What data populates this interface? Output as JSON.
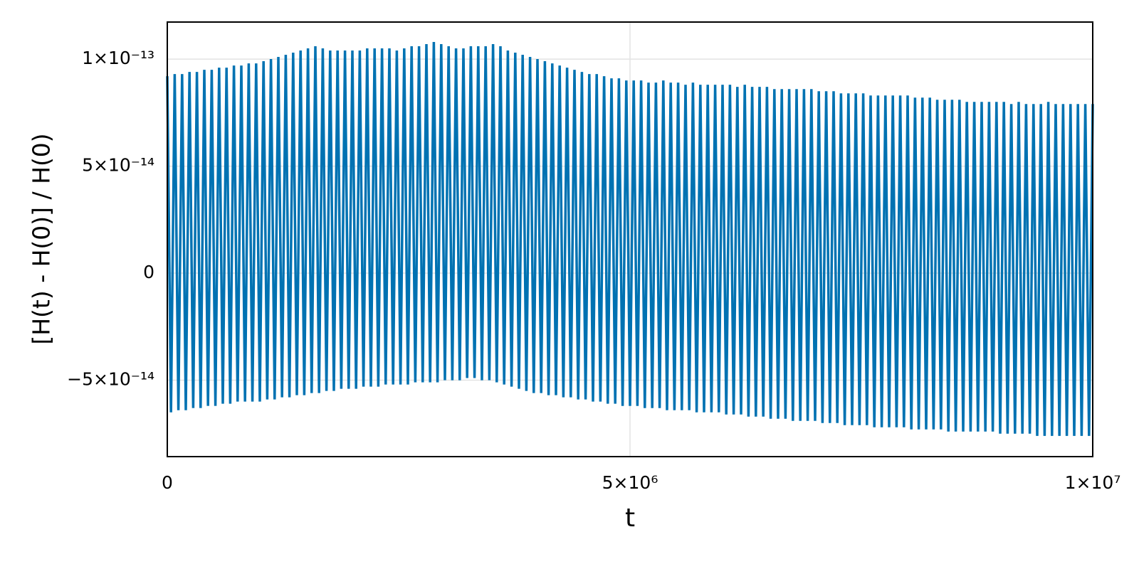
{
  "chart_data": {
    "type": "line",
    "xlabel": "t",
    "ylabel": "[H(t) - H(0)] / H(0)",
    "color": "#0072b2",
    "grid": true,
    "xlim": [
      0,
      10000000
    ],
    "ylim": [
      -8.57e-14,
      1.173e-13
    ],
    "xticks": [
      0,
      {
        "value": 5000000,
        "label": "5×10⁶"
      },
      {
        "value": 10000000,
        "label": "1×10⁷"
      }
    ],
    "yticks": [
      {
        "value": -5e-14,
        "label": "−5×10⁻¹⁴"
      },
      0,
      {
        "value": 5e-14,
        "label": "5×10⁻¹⁴"
      },
      {
        "value": 1e-13,
        "label": "1×10⁻¹³"
      }
    ],
    "x": [
      0,
      40000,
      80000,
      120000,
      160000,
      200000,
      240000,
      280000,
      320000,
      360000,
      400000,
      440000,
      480000,
      520000,
      560000,
      600000,
      640000,
      680000,
      720000,
      760000,
      800000,
      840000,
      880000,
      920000,
      960000,
      1000000,
      1040000,
      1080000,
      1120000,
      1160000,
      1200000,
      1240000,
      1280000,
      1320000,
      1360000,
      1400000,
      1440000,
      1480000,
      1520000,
      1560000,
      1600000,
      1640000,
      1680000,
      1720000,
      1760000,
      1800000,
      1840000,
      1880000,
      1920000,
      1960000,
      2000000,
      2040000,
      2080000,
      2120000,
      2160000,
      2200000,
      2240000,
      2280000,
      2320000,
      2360000,
      2400000,
      2440000,
      2480000,
      2520000,
      2560000,
      2600000,
      2640000,
      2680000,
      2720000,
      2760000,
      2800000,
      2840000,
      2880000,
      2920000,
      2960000,
      3000000,
      3040000,
      3080000,
      3120000,
      3160000,
      3200000,
      3240000,
      3280000,
      3320000,
      3360000,
      3400000,
      3440000,
      3480000,
      3520000,
      3560000,
      3600000,
      3640000,
      3680000,
      3720000,
      3760000,
      3800000,
      3840000,
      3880000,
      3920000,
      3960000,
      4000000,
      4040000,
      4080000,
      4120000,
      4160000,
      4200000,
      4240000,
      4280000,
      4320000,
      4360000,
      4400000,
      4440000,
      4480000,
      4520000,
      4560000,
      4600000,
      4640000,
      4680000,
      4720000,
      4760000,
      4800000,
      4840000,
      4880000,
      4920000,
      4960000,
      5000000,
      5040000,
      5080000,
      5120000,
      5160000,
      5200000,
      5240000,
      5280000,
      5320000,
      5360000,
      5400000,
      5440000,
      5480000,
      5520000,
      5560000,
      5600000,
      5640000,
      5680000,
      5720000,
      5760000,
      5800000,
      5840000,
      5880000,
      5920000,
      5960000,
      6000000,
      6040000,
      6080000,
      6120000,
      6160000,
      6200000,
      6240000,
      6280000,
      6320000,
      6360000,
      6400000,
      6440000,
      6480000,
      6520000,
      6560000,
      6600000,
      6640000,
      6680000,
      6720000,
      6760000,
      6800000,
      6840000,
      6880000,
      6920000,
      6960000,
      7000000,
      7040000,
      7080000,
      7120000,
      7160000,
      7200000,
      7240000,
      7280000,
      7320000,
      7360000,
      7400000,
      7440000,
      7480000,
      7520000,
      7560000,
      7600000,
      7640000,
      7680000,
      7720000,
      7760000,
      7800000,
      7840000,
      7880000,
      7920000,
      7960000,
      8000000,
      8040000,
      8080000,
      8120000,
      8160000,
      8200000,
      8240000,
      8280000,
      8320000,
      8360000,
      8400000,
      8440000,
      8480000,
      8520000,
      8560000,
      8600000,
      8640000,
      8680000,
      8720000,
      8760000,
      8800000,
      8840000,
      8880000,
      8920000,
      8960000,
      9000000,
      9040000,
      9080000,
      9120000,
      9160000,
      9200000,
      9240000,
      9280000,
      9320000,
      9360000,
      9400000,
      9440000,
      9480000,
      9520000,
      9560000,
      9600000,
      9640000,
      9680000,
      9720000,
      9760000,
      9800000,
      9840000,
      9880000,
      9920000,
      9960000,
      10000000
    ],
    "values": [
      9.2e-14,
      -6.5e-14,
      9.3e-14,
      -6.4e-14,
      9.3e-14,
      -6.4e-14,
      9.4e-14,
      -6.3e-14,
      9.4e-14,
      -6.3e-14,
      9.5e-14,
      -6.2e-14,
      9.5e-14,
      -6.2e-14,
      9.6e-14,
      -6.1e-14,
      9.6e-14,
      -6.1e-14,
      9.7e-14,
      -6e-14,
      9.7e-14,
      -6e-14,
      9.8e-14,
      -6e-14,
      9.8e-14,
      -6e-14,
      9.9e-14,
      -5.9e-14,
      1e-13,
      -5.9e-14,
      1.01e-13,
      -5.8e-14,
      1.02e-13,
      -5.8e-14,
      1.03e-13,
      -5.7e-14,
      1.04e-13,
      -5.7e-14,
      1.05e-13,
      -5.6e-14,
      1.06e-13,
      -5.6e-14,
      1.05e-13,
      -5.5e-14,
      1.04e-13,
      -5.5e-14,
      1.04e-13,
      -5.4e-14,
      1.04e-13,
      -5.4e-14,
      1.04e-13,
      -5.4e-14,
      1.04e-13,
      -5.3e-14,
      1.05e-13,
      -5.3e-14,
      1.05e-13,
      -5.3e-14,
      1.05e-13,
      -5.2e-14,
      1.05e-13,
      -5.2e-14,
      1.04e-13,
      -5.2e-14,
      1.05e-13,
      -5.2e-14,
      1.06e-13,
      -5.1e-14,
      1.06e-13,
      -5.1e-14,
      1.07e-13,
      -5.1e-14,
      1.08e-13,
      -5.1e-14,
      1.07e-13,
      -5e-14,
      1.06e-13,
      -5e-14,
      1.05e-13,
      -5e-14,
      1.05e-13,
      -4.9e-14,
      1.06e-13,
      -4.9e-14,
      1.06e-13,
      -5e-14,
      1.06e-13,
      -5e-14,
      1.07e-13,
      -5.1e-14,
      1.06e-13,
      -5.2e-14,
      1.04e-13,
      -5.3e-14,
      1.03e-13,
      -5.4e-14,
      1.02e-13,
      -5.5e-14,
      1.01e-13,
      -5.6e-14,
      1e-13,
      -5.6e-14,
      9.9e-14,
      -5.7e-14,
      9.8e-14,
      -5.7e-14,
      9.7e-14,
      -5.8e-14,
      9.6e-14,
      -5.8e-14,
      9.5e-14,
      -5.9e-14,
      9.4e-14,
      -5.9e-14,
      9.3e-14,
      -6e-14,
      9.3e-14,
      -6e-14,
      9.2e-14,
      -6.1e-14,
      9.1e-14,
      -6.1e-14,
      9.1e-14,
      -6.2e-14,
      9e-14,
      -6.2e-14,
      9e-14,
      -6.2e-14,
      9e-14,
      -6.3e-14,
      8.9e-14,
      -6.3e-14,
      8.9e-14,
      -6.3e-14,
      9e-14,
      -6.4e-14,
      8.9e-14,
      -6.4e-14,
      8.9e-14,
      -6.4e-14,
      8.8e-14,
      -6.4e-14,
      8.9e-14,
      -6.5e-14,
      8.8e-14,
      -6.5e-14,
      8.8e-14,
      -6.5e-14,
      8.8e-14,
      -6.5e-14,
      8.8e-14,
      -6.6e-14,
      8.8e-14,
      -6.6e-14,
      8.7e-14,
      -6.6e-14,
      8.8e-14,
      -6.7e-14,
      8.7e-14,
      -6.7e-14,
      8.7e-14,
      -6.7e-14,
      8.7e-14,
      -6.8e-14,
      8.6e-14,
      -6.8e-14,
      8.6e-14,
      -6.8e-14,
      8.6e-14,
      -6.9e-14,
      8.6e-14,
      -6.9e-14,
      8.6e-14,
      -6.9e-14,
      8.6e-14,
      -6.9e-14,
      8.5e-14,
      -7e-14,
      8.5e-14,
      -7e-14,
      8.5e-14,
      -7e-14,
      8.4e-14,
      -7.1e-14,
      8.4e-14,
      -7.1e-14,
      8.4e-14,
      -7.1e-14,
      8.4e-14,
      -7.1e-14,
      8.3e-14,
      -7.2e-14,
      8.3e-14,
      -7.2e-14,
      8.3e-14,
      -7.2e-14,
      8.3e-14,
      -7.2e-14,
      8.3e-14,
      -7.2e-14,
      8.3e-14,
      -7.3e-14,
      8.2e-14,
      -7.3e-14,
      8.2e-14,
      -7.3e-14,
      8.2e-14,
      -7.3e-14,
      8.1e-14,
      -7.3e-14,
      8.1e-14,
      -7.4e-14,
      8.1e-14,
      -7.4e-14,
      8.1e-14,
      -7.4e-14,
      8e-14,
      -7.4e-14,
      8e-14,
      -7.4e-14,
      8e-14,
      -7.4e-14,
      8e-14,
      -7.4e-14,
      8e-14,
      -7.5e-14,
      8e-14,
      -7.5e-14,
      7.9e-14,
      -7.5e-14,
      8e-14,
      -7.5e-14,
      7.9e-14,
      -7.5e-14,
      7.9e-14,
      -7.6e-14,
      7.9e-14,
      -7.6e-14,
      8e-14,
      -7.6e-14,
      7.9e-14,
      -7.6e-14,
      7.9e-14,
      -7.6e-14,
      7.9e-14,
      -7.6e-14,
      7.9e-14,
      -7.6e-14,
      7.9e-14,
      -7.6e-14,
      7.9e-14
    ]
  }
}
